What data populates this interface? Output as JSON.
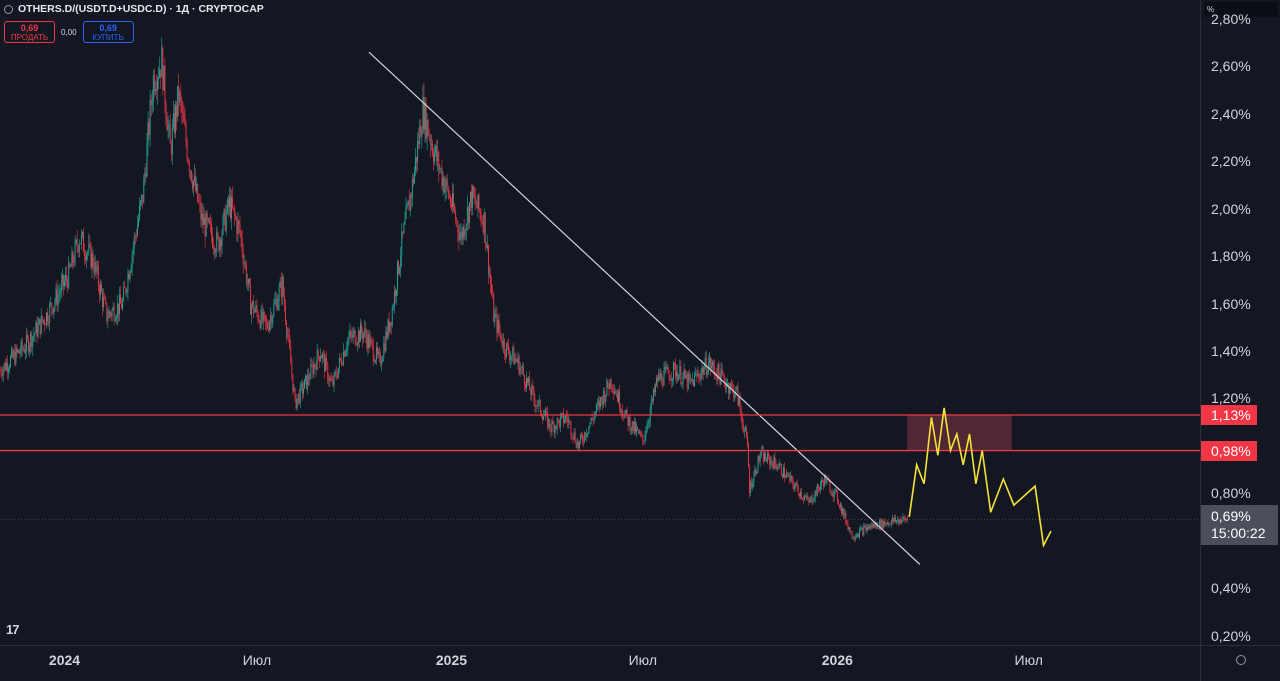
{
  "header": {
    "title": "OTHERS.D/(USDT.D+USDC.D) · 1Д · CRYPTOCAP",
    "sell_price": "0,69",
    "sell_label": "ПРОДАТЬ",
    "spread": "0,00",
    "buy_price": "0,69",
    "buy_label": "КУПИТЬ"
  },
  "axis": {
    "unit": "%"
  },
  "last": {
    "value": "0,69%",
    "countdown": "15:00:22"
  },
  "icons": {
    "settings": "settings-icon",
    "logo": "tradingview-logo"
  },
  "colors": {
    "up": "#26a69a",
    "down": "#f23645",
    "level": "#f23645",
    "forecast": "#f5e13a",
    "trendline": "#d1d4dc",
    "zone": "#5c2a35"
  },
  "chart_data": {
    "type": "candlestick",
    "ylim": [
      0.16,
      2.88
    ],
    "y_ticks": [
      {
        "value": 2.8,
        "label": "2,80%"
      },
      {
        "value": 2.6,
        "label": "2,60%"
      },
      {
        "value": 2.4,
        "label": "2,40%"
      },
      {
        "value": 2.2,
        "label": "2,20%"
      },
      {
        "value": 2.0,
        "label": "2,00%"
      },
      {
        "value": 1.8,
        "label": "1,80%"
      },
      {
        "value": 1.6,
        "label": "1,60%"
      },
      {
        "value": 1.4,
        "label": "1,40%"
      },
      {
        "value": 1.2,
        "label": "1,20%"
      },
      {
        "value": 0.8,
        "label": "0,80%"
      },
      {
        "value": 0.4,
        "label": "0,40%"
      },
      {
        "value": 0.2,
        "label": "0,20%"
      }
    ],
    "x_ticks": [
      {
        "date": "2024-01-01",
        "label": "2024",
        "year": true
      },
      {
        "date": "2024-07-01",
        "label": "Июл",
        "year": false
      },
      {
        "date": "2025-01-01",
        "label": "2025",
        "year": true
      },
      {
        "date": "2025-07-01",
        "label": "Июл",
        "year": false
      },
      {
        "date": "2026-01-01",
        "label": "2026",
        "year": true
      },
      {
        "date": "2026-07-01",
        "label": "Июл",
        "year": false
      }
    ],
    "x_domain": [
      "2023-11-01",
      "2026-12-10"
    ],
    "price_path": [
      [
        "2023-11-01",
        1.32
      ],
      [
        "2023-11-25",
        1.42
      ],
      [
        "2023-12-15",
        1.55
      ],
      [
        "2024-01-05",
        1.72
      ],
      [
        "2024-01-15",
        1.88
      ],
      [
        "2024-01-28",
        1.78
      ],
      [
        "2024-02-10",
        1.55
      ],
      [
        "2024-02-25",
        1.6
      ],
      [
        "2024-03-05",
        1.82
      ],
      [
        "2024-03-15",
        2.05
      ],
      [
        "2024-03-25",
        2.55
      ],
      [
        "2024-04-02",
        2.62
      ],
      [
        "2024-04-10",
        2.25
      ],
      [
        "2024-04-18",
        2.48
      ],
      [
        "2024-04-28",
        2.2
      ],
      [
        "2024-05-10",
        1.95
      ],
      [
        "2024-05-25",
        1.85
      ],
      [
        "2024-06-05",
        2.02
      ],
      [
        "2024-06-15",
        1.9
      ],
      [
        "2024-06-25",
        1.6
      ],
      [
        "2024-07-10",
        1.5
      ],
      [
        "2024-07-25",
        1.68
      ],
      [
        "2024-08-06",
        1.18
      ],
      [
        "2024-08-18",
        1.28
      ],
      [
        "2024-08-30",
        1.4
      ],
      [
        "2024-09-10",
        1.25
      ],
      [
        "2024-09-25",
        1.45
      ],
      [
        "2024-10-10",
        1.48
      ],
      [
        "2024-10-25",
        1.35
      ],
      [
        "2024-11-05",
        1.55
      ],
      [
        "2024-11-15",
        1.85
      ],
      [
        "2024-11-25",
        2.1
      ],
      [
        "2024-12-05",
        2.42
      ],
      [
        "2024-12-15",
        2.25
      ],
      [
        "2025-01-01",
        2.02
      ],
      [
        "2025-01-10",
        1.88
      ],
      [
        "2025-01-20",
        2.05
      ],
      [
        "2025-02-01",
        1.95
      ],
      [
        "2025-02-10",
        1.55
      ],
      [
        "2025-02-20",
        1.42
      ],
      [
        "2025-03-05",
        1.35
      ],
      [
        "2025-03-20",
        1.2
      ],
      [
        "2025-04-05",
        1.08
      ],
      [
        "2025-04-20",
        1.12
      ],
      [
        "2025-05-01",
        1.0
      ],
      [
        "2025-05-15",
        1.12
      ],
      [
        "2025-06-01",
        1.28
      ],
      [
        "2025-06-15",
        1.12
      ],
      [
        "2025-07-01",
        1.02
      ],
      [
        "2025-07-15",
        1.28
      ],
      [
        "2025-08-01",
        1.32
      ],
      [
        "2025-08-15",
        1.26
      ],
      [
        "2025-09-01",
        1.35
      ],
      [
        "2025-09-15",
        1.28
      ],
      [
        "2025-09-28",
        1.22
      ],
      [
        "2025-10-08",
        1.0
      ],
      [
        "2025-10-10",
        0.82
      ],
      [
        "2025-10-20",
        0.96
      ],
      [
        "2025-11-05",
        0.92
      ],
      [
        "2025-11-20",
        0.84
      ],
      [
        "2025-12-05",
        0.76
      ],
      [
        "2025-12-20",
        0.86
      ],
      [
        "2026-01-01",
        0.78
      ],
      [
        "2026-01-15",
        0.62
      ],
      [
        "2026-02-01",
        0.66
      ],
      [
        "2026-02-20",
        0.68
      ],
      [
        "2026-03-08",
        0.69
      ]
    ],
    "trendline": [
      [
        "2024-10-15",
        2.66
      ],
      [
        "2026-03-20",
        0.5
      ]
    ],
    "levels": [
      {
        "value": 1.13,
        "label": "1,13%"
      },
      {
        "value": 0.98,
        "label": "0,98%"
      }
    ],
    "zone": {
      "from": "2026-03-08",
      "to": "2026-06-15",
      "low": 0.98,
      "high": 1.13
    },
    "forecast": [
      [
        "2026-03-10",
        0.7
      ],
      [
        "2026-03-17",
        0.92
      ],
      [
        "2026-03-24",
        0.84
      ],
      [
        "2026-03-31",
        1.12
      ],
      [
        "2026-04-06",
        0.96
      ],
      [
        "2026-04-12",
        1.16
      ],
      [
        "2026-04-18",
        0.98
      ],
      [
        "2026-04-24",
        1.05
      ],
      [
        "2026-04-30",
        0.92
      ],
      [
        "2026-05-06",
        1.05
      ],
      [
        "2026-05-12",
        0.84
      ],
      [
        "2026-05-18",
        0.98
      ],
      [
        "2026-05-26",
        0.72
      ],
      [
        "2026-06-07",
        0.86
      ],
      [
        "2026-06-17",
        0.75
      ],
      [
        "2026-07-07",
        0.83
      ],
      [
        "2026-07-15",
        0.58
      ],
      [
        "2026-07-22",
        0.64
      ]
    ]
  }
}
